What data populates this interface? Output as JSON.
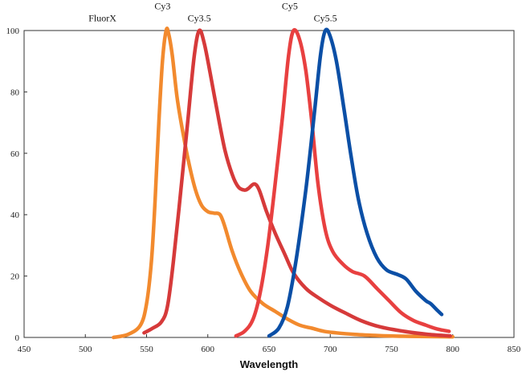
{
  "chart_data": {
    "type": "line",
    "xlabel": "Wavelength",
    "ylabel": "",
    "xlim": [
      450,
      850
    ],
    "ylim": [
      0,
      100
    ],
    "x_ticks": [
      450,
      500,
      550,
      600,
      650,
      700,
      750,
      800,
      850
    ],
    "y_ticks": [
      0,
      20,
      40,
      60,
      80,
      100
    ],
    "grid": false,
    "labels": [
      {
        "text": "FluorX",
        "x": 514,
        "y": 103
      },
      {
        "text": "Cy3",
        "x": 563,
        "y": 107
      },
      {
        "text": "Cy3.5",
        "x": 593,
        "y": 103
      },
      {
        "text": "Cy5",
        "x": 667,
        "y": 107
      },
      {
        "text": "Cy5.5",
        "x": 696,
        "y": 103
      }
    ],
    "series": [
      {
        "color": "#f28a2e",
        "points": [
          [
            523,
            0
          ],
          [
            535,
            1
          ],
          [
            545,
            4
          ],
          [
            550,
            11
          ],
          [
            554,
            25
          ],
          [
            557,
            45
          ],
          [
            560,
            70
          ],
          [
            563,
            90
          ],
          [
            566,
            100
          ],
          [
            568,
            99
          ],
          [
            571,
            92
          ],
          [
            575,
            78
          ],
          [
            580,
            66
          ],
          [
            585,
            56
          ],
          [
            590,
            48
          ],
          [
            595,
            43
          ],
          [
            600,
            41
          ],
          [
            605,
            40.5
          ],
          [
            610,
            40
          ],
          [
            614,
            36
          ],
          [
            620,
            28
          ],
          [
            627,
            21
          ],
          [
            635,
            15
          ],
          [
            645,
            11
          ],
          [
            655,
            8.5
          ],
          [
            665,
            6
          ],
          [
            675,
            4
          ],
          [
            685,
            3
          ],
          [
            695,
            2
          ],
          [
            705,
            1.5
          ],
          [
            720,
            1
          ],
          [
            740,
            0.6
          ],
          [
            760,
            0.4
          ],
          [
            780,
            0.3
          ],
          [
            800,
            0.2
          ]
        ]
      },
      {
        "color": "#d63a3a",
        "points": [
          [
            548,
            1.5
          ],
          [
            555,
            3
          ],
          [
            562,
            5
          ],
          [
            567,
            10
          ],
          [
            572,
            25
          ],
          [
            578,
            48
          ],
          [
            584,
            72
          ],
          [
            589,
            92
          ],
          [
            593,
            100
          ],
          [
            597,
            96
          ],
          [
            602,
            86
          ],
          [
            608,
            73
          ],
          [
            614,
            61
          ],
          [
            620,
            53
          ],
          [
            625,
            49
          ],
          [
            630,
            48
          ],
          [
            633,
            48.5
          ],
          [
            638,
            50
          ],
          [
            642,
            48
          ],
          [
            648,
            41
          ],
          [
            655,
            34
          ],
          [
            663,
            27
          ],
          [
            670,
            21
          ],
          [
            680,
            16
          ],
          [
            690,
            13
          ],
          [
            700,
            10.5
          ],
          [
            712,
            8
          ],
          [
            725,
            5.5
          ],
          [
            740,
            3.5
          ],
          [
            760,
            2
          ],
          [
            780,
            1
          ],
          [
            798,
            0.5
          ]
        ]
      },
      {
        "color": "#e84040",
        "points": [
          [
            623,
            0.5
          ],
          [
            630,
            2
          ],
          [
            637,
            6
          ],
          [
            643,
            15
          ],
          [
            649,
            30
          ],
          [
            655,
            50
          ],
          [
            661,
            72
          ],
          [
            666,
            92
          ],
          [
            670,
            100
          ],
          [
            675,
            97
          ],
          [
            680,
            87
          ],
          [
            685,
            70
          ],
          [
            690,
            50
          ],
          [
            696,
            35
          ],
          [
            702,
            28
          ],
          [
            710,
            24
          ],
          [
            718,
            21.5
          ],
          [
            728,
            20
          ],
          [
            738,
            16
          ],
          [
            748,
            12
          ],
          [
            758,
            8
          ],
          [
            768,
            5.5
          ],
          [
            778,
            4
          ],
          [
            785,
            3
          ],
          [
            790,
            2.5
          ],
          [
            797,
            2
          ]
        ]
      },
      {
        "color": "#0b4fa6",
        "points": [
          [
            650,
            0.5
          ],
          [
            658,
            3
          ],
          [
            665,
            10
          ],
          [
            672,
            25
          ],
          [
            680,
            48
          ],
          [
            687,
            73
          ],
          [
            692,
            92
          ],
          [
            696,
            100
          ],
          [
            700,
            98
          ],
          [
            705,
            90
          ],
          [
            711,
            75
          ],
          [
            717,
            59
          ],
          [
            723,
            45
          ],
          [
            730,
            34
          ],
          [
            738,
            26
          ],
          [
            746,
            22
          ],
          [
            755,
            20.5
          ],
          [
            762,
            19
          ],
          [
            770,
            15
          ],
          [
            778,
            12
          ],
          [
            782,
            11
          ],
          [
            787,
            9
          ],
          [
            791,
            7.5
          ]
        ]
      }
    ]
  }
}
